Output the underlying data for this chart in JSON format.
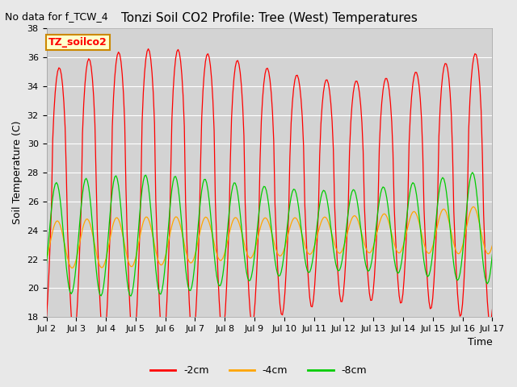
{
  "title": "Tonzi Soil CO2 Profile: Tree (West) Temperatures",
  "subtitle": "No data for f_TCW_4",
  "ylabel": "Soil Temperature (C)",
  "xlabel": "Time",
  "legend_label": "TZ_soilco2",
  "ylim": [
    18,
    38
  ],
  "series_labels": [
    "-2cm",
    "-4cm",
    "-8cm"
  ],
  "series_colors": [
    "#ff0000",
    "#ffa500",
    "#00cc00"
  ],
  "x_tick_labels": [
    "Jul 2",
    "Jul 3",
    "Jul 4",
    "Jul 5",
    "Jul 6",
    "Jul 7",
    "Jul 8",
    "Jul 9",
    "Jul 10",
    "Jul 11",
    "Jul 12",
    "Jul 13",
    "Jul 14",
    "Jul 15",
    "Jul 16",
    "Jul 17"
  ],
  "background_color": "#e8e8e8",
  "plot_bg_color": "#d3d3d3",
  "grid_color": "#ffffff",
  "title_fontsize": 11,
  "subtitle_fontsize": 9,
  "axis_fontsize": 9,
  "tick_fontsize": 8
}
